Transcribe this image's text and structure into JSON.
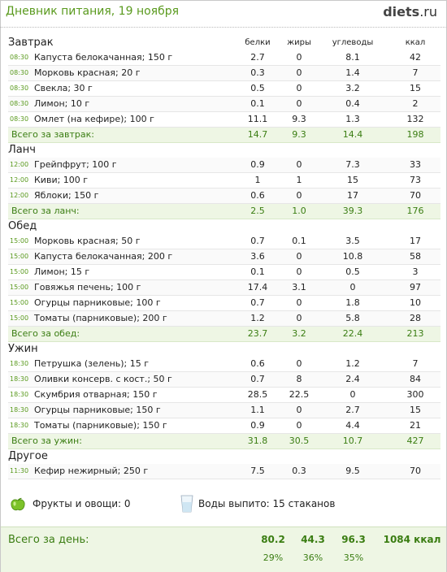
{
  "header": {
    "title": "Дневник питания, 19 ноября",
    "logo_main": "diets",
    "logo_suffix": ".ru"
  },
  "columns": {
    "protein": "белки",
    "fat": "жиры",
    "carbs": "углеводы",
    "kcal": "ккал"
  },
  "meals": [
    {
      "name": "Завтрак",
      "items": [
        {
          "time": "08:30",
          "food": "Капуста белокачанная; 150 г",
          "p": "2.7",
          "f": "0",
          "c": "8.1",
          "k": "42"
        },
        {
          "time": "08:30",
          "food": "Морковь красная; 20 г",
          "p": "0.3",
          "f": "0",
          "c": "1.4",
          "k": "7"
        },
        {
          "time": "08:30",
          "food": "Свекла; 30 г",
          "p": "0.5",
          "f": "0",
          "c": "3.2",
          "k": "15"
        },
        {
          "time": "08:30",
          "food": "Лимон; 10 г",
          "p": "0.1",
          "f": "0",
          "c": "0.4",
          "k": "2"
        },
        {
          "time": "08:30",
          "food": "Омлет (на кефире); 100 г",
          "p": "11.1",
          "f": "9.3",
          "c": "1.3",
          "k": "132"
        }
      ],
      "total": {
        "label": "Всего за завтрак:",
        "p": "14.7",
        "f": "9.3",
        "c": "14.4",
        "k": "198"
      }
    },
    {
      "name": "Ланч",
      "items": [
        {
          "time": "12:00",
          "food": "Грейпфрут; 100 г",
          "p": "0.9",
          "f": "0",
          "c": "7.3",
          "k": "33"
        },
        {
          "time": "12:00",
          "food": "Киви; 100 г",
          "p": "1",
          "f": "1",
          "c": "15",
          "k": "73"
        },
        {
          "time": "12:00",
          "food": "Яблоки; 150 г",
          "p": "0.6",
          "f": "0",
          "c": "17",
          "k": "70"
        }
      ],
      "total": {
        "label": "Всего за ланч:",
        "p": "2.5",
        "f": "1.0",
        "c": "39.3",
        "k": "176"
      }
    },
    {
      "name": "Обед",
      "items": [
        {
          "time": "15:00",
          "food": "Морковь красная; 50 г",
          "p": "0.7",
          "f": "0.1",
          "c": "3.5",
          "k": "17"
        },
        {
          "time": "15:00",
          "food": "Капуста белокачанная; 200 г",
          "p": "3.6",
          "f": "0",
          "c": "10.8",
          "k": "58"
        },
        {
          "time": "15:00",
          "food": "Лимон; 15 г",
          "p": "0.1",
          "f": "0",
          "c": "0.5",
          "k": "3"
        },
        {
          "time": "15:00",
          "food": "Говяжья печень; 100 г",
          "p": "17.4",
          "f": "3.1",
          "c": "0",
          "k": "97"
        },
        {
          "time": "15:00",
          "food": "Огурцы парниковые; 100 г",
          "p": "0.7",
          "f": "0",
          "c": "1.8",
          "k": "10"
        },
        {
          "time": "15:00",
          "food": "Томаты (парниковые); 200 г",
          "p": "1.2",
          "f": "0",
          "c": "5.8",
          "k": "28"
        }
      ],
      "total": {
        "label": "Всего за обед:",
        "p": "23.7",
        "f": "3.2",
        "c": "22.4",
        "k": "213"
      }
    },
    {
      "name": "Ужин",
      "items": [
        {
          "time": "18:30",
          "food": "Петрушка (зелень); 15 г",
          "p": "0.6",
          "f": "0",
          "c": "1.2",
          "k": "7"
        },
        {
          "time": "18:30",
          "food": "Оливки консерв. с кост.; 50 г",
          "p": "0.7",
          "f": "8",
          "c": "2.4",
          "k": "84"
        },
        {
          "time": "18:30",
          "food": "Скумбрия отварная; 150 г",
          "p": "28.5",
          "f": "22.5",
          "c": "0",
          "k": "300"
        },
        {
          "time": "18:30",
          "food": "Огурцы парниковые; 150 г",
          "p": "1.1",
          "f": "0",
          "c": "2.7",
          "k": "15"
        },
        {
          "time": "18:30",
          "food": "Томаты (парниковые); 150 г",
          "p": "0.9",
          "f": "0",
          "c": "4.4",
          "k": "21"
        }
      ],
      "total": {
        "label": "Всего за ужин:",
        "p": "31.8",
        "f": "30.5",
        "c": "10.7",
        "k": "427"
      }
    },
    {
      "name": "Другое",
      "items": [
        {
          "time": "11:30",
          "food": "Кефир нежирный; 250 г",
          "p": "7.5",
          "f": "0.3",
          "c": "9.5",
          "k": "70"
        }
      ],
      "total": null
    }
  ],
  "extras": {
    "fruit_label": "Фрукты и овощи: 0",
    "water_label": "Воды выпито: 15 стаканов"
  },
  "day_total": {
    "label": "Всего за день:",
    "p": "80.2",
    "f": "44.3",
    "c": "96.3",
    "k": "1084 ккал",
    "p_pct": "29%",
    "f_pct": "36%",
    "c_pct": "35%"
  }
}
